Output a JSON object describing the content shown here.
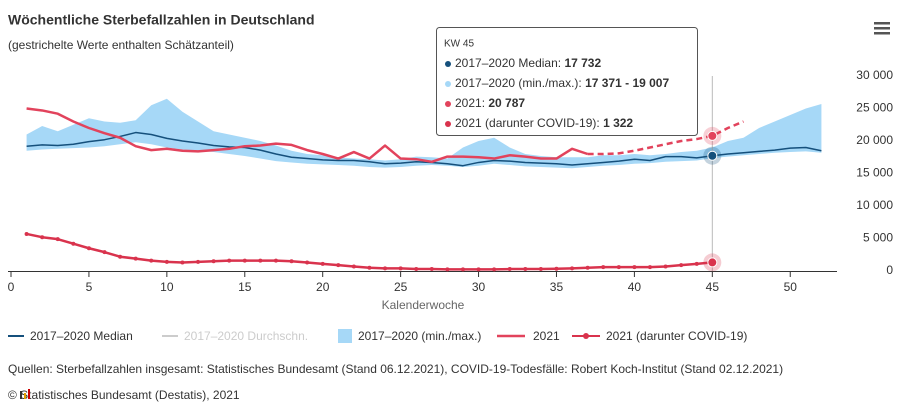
{
  "chart_data": {
    "type": "line",
    "title": "Wöchentliche Sterbefallzahlen in Deutschland",
    "subtitle": "(gestrichelte Werte enthalten Schätzanteil)",
    "x_label": "Kalenderwoche",
    "x": [
      1,
      2,
      3,
      4,
      5,
      6,
      7,
      8,
      9,
      10,
      11,
      12,
      13,
      14,
      15,
      16,
      17,
      18,
      19,
      20,
      21,
      22,
      23,
      24,
      25,
      26,
      27,
      28,
      29,
      30,
      31,
      32,
      33,
      34,
      35,
      36,
      37,
      38,
      39,
      40,
      41,
      42,
      43,
      44,
      45,
      46,
      47,
      48,
      49,
      50,
      51,
      52
    ],
    "xlim": [
      0,
      53
    ],
    "xticks": [
      0,
      5,
      10,
      15,
      20,
      25,
      30,
      35,
      40,
      45,
      50
    ],
    "ylim": [
      0,
      30000
    ],
    "yticks": [
      0,
      {
        "value": 5000,
        "label": "5 000"
      },
      {
        "value": 10000,
        "label": "10 000"
      },
      {
        "value": 15000,
        "label": "15 000"
      },
      {
        "value": 20000,
        "label": "20 000"
      },
      {
        "value": 25000,
        "label": "25 000"
      },
      {
        "value": 30000,
        "label": "30 000"
      }
    ],
    "band": {
      "name": "2017–2020 (min./max.)",
      "color": "#a6d8f7",
      "high": [
        21000,
        22300,
        21500,
        22500,
        23500,
        23000,
        22800,
        23200,
        25500,
        26500,
        24500,
        23000,
        21500,
        21000,
        20500,
        20000,
        19300,
        18500,
        18000,
        17800,
        17500,
        17300,
        17200,
        17000,
        17200,
        17600,
        17500,
        17300,
        19000,
        20000,
        20500,
        19000,
        18000,
        17700,
        17500,
        17500,
        17500,
        17800,
        17800,
        18000,
        17800,
        18000,
        18300,
        18500,
        19007,
        20000,
        20500,
        22000,
        23000,
        24000,
        25000,
        25700
      ],
      "low": [
        18500,
        18700,
        18800,
        18900,
        19000,
        19200,
        19500,
        19800,
        19500,
        19000,
        18700,
        18500,
        18300,
        18000,
        17700,
        17300,
        16900,
        16700,
        16500,
        16400,
        16300,
        16200,
        16000,
        15900,
        16000,
        16200,
        16300,
        16200,
        16000,
        16200,
        16500,
        16300,
        16100,
        16000,
        15900,
        15800,
        16000,
        16200,
        16300,
        16500,
        16600,
        16800,
        16900,
        17000,
        17371,
        17600,
        17800,
        18000,
        18200,
        18300,
        18400,
        18200
      ]
    },
    "series": [
      {
        "name": "2017–2020 Median",
        "color": "#15507c",
        "values": [
          19200,
          19400,
          19300,
          19500,
          19900,
          20200,
          20700,
          21300,
          21000,
          20400,
          20000,
          19700,
          19300,
          19100,
          19000,
          18600,
          18000,
          17500,
          17300,
          17100,
          17000,
          17000,
          16800,
          16500,
          16600,
          16800,
          16700,
          16500,
          16200,
          16700,
          17000,
          16900,
          16700,
          16600,
          16500,
          16300,
          16500,
          16700,
          16900,
          17200,
          17000,
          17600,
          17600,
          17400,
          17732,
          18000,
          18200,
          18400,
          18600,
          18900,
          19000,
          18500
        ]
      },
      {
        "name": "2017–2020 Durchschn.",
        "color": "#cccccc",
        "hidden": true
      },
      {
        "name": "2021",
        "color": "#e2435c",
        "dash_from_x": 37,
        "values": [
          25000,
          24700,
          24200,
          23000,
          22000,
          21200,
          20500,
          19200,
          18600,
          18800,
          18500,
          18400,
          18600,
          18800,
          19200,
          19300,
          19600,
          19400,
          18600,
          18000,
          17300,
          18300,
          17300,
          19300,
          17300,
          17200,
          16800,
          17600,
          17600,
          17500,
          17300,
          17800,
          17600,
          17300,
          17300,
          18800,
          18000,
          18000,
          18100,
          18500,
          19000,
          19500,
          20000,
          20300,
          20787,
          22000,
          23000,
          null,
          null,
          null,
          null,
          null
        ]
      },
      {
        "name": "2021 (darunter COVID-19)",
        "color": "#d9334d",
        "markers": true,
        "values": [
          5700,
          5200,
          4900,
          4200,
          3500,
          2900,
          2200,
          1900,
          1600,
          1400,
          1300,
          1400,
          1500,
          1600,
          1600,
          1600,
          1600,
          1500,
          1300,
          1100,
          900,
          700,
          500,
          400,
          400,
          300,
          300,
          250,
          250,
          250,
          250,
          300,
          300,
          300,
          350,
          400,
          500,
          600,
          600,
          600,
          600,
          700,
          900,
          1100,
          1322,
          null,
          null,
          null,
          null,
          null,
          null,
          null
        ]
      }
    ],
    "crosshair_x": 45,
    "tooltip": {
      "title": "KW 45",
      "rows": [
        {
          "label": "2017–2020 Median: ",
          "text": "17 732",
          "color": "#15507c"
        },
        {
          "label": "2017–2020 (min./max.): ",
          "text": "17 371 - 19 007",
          "color": "#a6d8f7"
        },
        {
          "label": "2021: ",
          "text": "20 787",
          "color": "#e2435c"
        },
        {
          "label": "2021 (darunter COVID-19): ",
          "text": "1 322",
          "color": "#d9334d"
        }
      ]
    },
    "sources": "Quellen: Sterbefallzahlen insgesamt: Statistisches Bundesamt (Stand 06.12.2021), COVID-19-Todesfälle: Robert Koch-Institut (Stand 02.12.2021)",
    "copyright": "© Statistisches Bundesamt (Destatis), 2021"
  }
}
